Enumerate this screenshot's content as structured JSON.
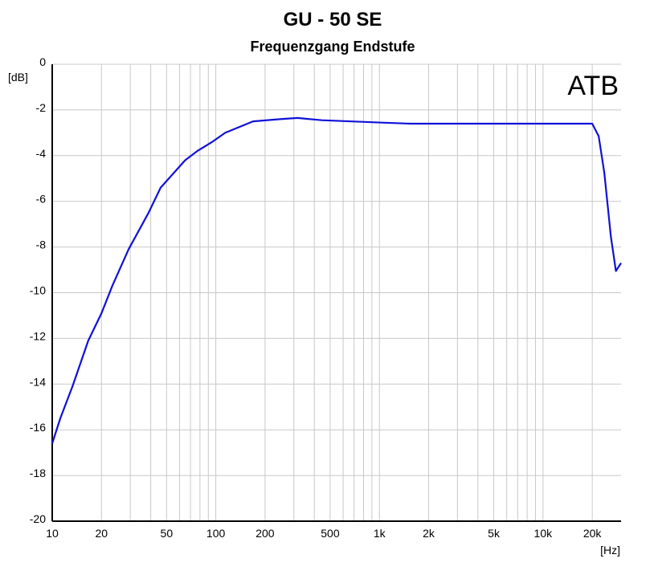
{
  "chart_data": {
    "type": "line",
    "title": "GU - 50 SE",
    "subtitle": "Frequenzgang Endstufe",
    "x_label": "[Hz]",
    "y_label": "[dB]",
    "annotation": "ATB",
    "log_x": true,
    "grid": true,
    "xlim": [
      10,
      30000
    ],
    "ylim": [
      -20,
      0
    ],
    "xticks": [
      10,
      20,
      {
        "value": 30,
        "label": null
      },
      {
        "value": 40,
        "label": null
      },
      50,
      {
        "value": 60,
        "label": null
      },
      {
        "value": 70,
        "label": null
      },
      {
        "value": 80,
        "label": null
      },
      {
        "value": 90,
        "label": null
      },
      100,
      200,
      {
        "value": 300,
        "label": null
      },
      {
        "value": 400,
        "label": null
      },
      500,
      {
        "value": 600,
        "label": null
      },
      {
        "value": 700,
        "label": null
      },
      {
        "value": 800,
        "label": null
      },
      {
        "value": 900,
        "label": null
      },
      {
        "value": 1000,
        "label": "1k"
      },
      {
        "value": 2000,
        "label": "2k"
      },
      {
        "value": 3000,
        "label": null
      },
      {
        "value": 4000,
        "label": null
      },
      {
        "value": 5000,
        "label": "5k"
      },
      {
        "value": 6000,
        "label": null
      },
      {
        "value": 7000,
        "label": null
      },
      {
        "value": 8000,
        "label": null
      },
      {
        "value": 9000,
        "label": null
      },
      {
        "value": 10000,
        "label": "10k"
      },
      {
        "value": 20000,
        "label": "20k"
      }
    ],
    "yticks": [
      0,
      -2,
      -4,
      -6,
      -8,
      -10,
      -12,
      -14,
      -16,
      -18,
      -20
    ],
    "x": [
      10,
      11.2,
      13.3,
      16.6,
      20,
      23.3,
      29.3,
      38.8,
      46,
      65,
      77,
      95,
      114,
      169,
      251,
      316,
      444,
      1000,
      1540,
      4270,
      6700,
      13200,
      20000,
      21900,
      23700,
      26000,
      27900,
      30000
    ],
    "series": [
      {
        "name": "Frequenzgang",
        "color": "#1010d8",
        "values": [
          -16.6,
          -15.5,
          -14.1,
          -12.1,
          -10.9,
          -9.7,
          -8.1,
          -6.5,
          -5.4,
          -4.2,
          -3.8,
          -3.4,
          -3.0,
          -2.5,
          -2.4,
          -2.35,
          -2.45,
          -2.55,
          -2.6,
          -2.6,
          -2.6,
          -2.6,
          -2.6,
          -3.15,
          -4.75,
          -7.55,
          -9.05,
          -8.7
        ]
      }
    ]
  }
}
